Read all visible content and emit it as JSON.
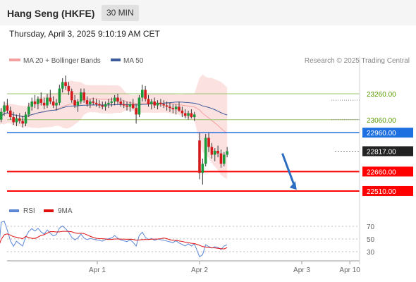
{
  "header": {
    "title": "Hang Seng (HKFE)",
    "timeframe": "30 MIN"
  },
  "datetime": "Thursday, April 3, 2025 9:10:19 AM CET",
  "legend": {
    "ma20": "MA 20 + Bollinger Bands",
    "ma50": "MA 50",
    "rsi": "RSI",
    "ma9": "9MA"
  },
  "credit": "Research © 2025 Trading Central",
  "colors": {
    "up": "#1a9a3a",
    "down": "#d41a1a",
    "band": "#f9c9c9",
    "ma20": "#f4a0a0",
    "ma50": "#3d5a99",
    "support": "#ff0000",
    "pivot": "#1e6fe0",
    "resistance": "#9bc36f",
    "rsi": "#5b86d8",
    "arrow": "#2b6dc0"
  },
  "chart_data": [
    {
      "type": "candlestick",
      "price_min": 22450,
      "price_max": 23450,
      "x_ticks": [
        {
          "label": "Apr 1",
          "x": 0.5
        },
        {
          "label": "Apr 2",
          "x": 1.5
        },
        {
          "label": "Apr 3",
          "x": 2.5
        },
        {
          "label": "Apr 10",
          "x": 2.97
        }
      ],
      "levels": [
        {
          "value": 23260,
          "label": "23260.00",
          "kind": "resistance"
        },
        {
          "value": 23060,
          "label": "23060.00",
          "kind": "resistance"
        },
        {
          "value": 22960,
          "label": "22960.00",
          "kind": "pivot"
        },
        {
          "value": 22817,
          "label": "22817.00",
          "kind": "last"
        },
        {
          "value": 22660,
          "label": "22660.00",
          "kind": "support"
        },
        {
          "value": 22510,
          "label": "22510.00",
          "kind": "support"
        }
      ],
      "arrow": {
        "from": [
          2.31,
          22800
        ],
        "to": [
          2.45,
          22520
        ]
      },
      "candles": [
        [
          -0.5,
          23050,
          23130,
          23020,
          23080
        ],
        [
          -0.47,
          23080,
          23110,
          23040,
          23060
        ],
        [
          -0.44,
          23060,
          23150,
          23040,
          23120
        ],
        [
          -0.41,
          23120,
          23200,
          23090,
          23170
        ],
        [
          -0.38,
          23170,
          23220,
          23110,
          23130
        ],
        [
          -0.35,
          23130,
          23160,
          23060,
          23080
        ],
        [
          -0.32,
          23080,
          23120,
          23020,
          23040
        ],
        [
          -0.29,
          23040,
          23100,
          23010,
          23070
        ],
        [
          -0.26,
          23070,
          23110,
          23030,
          23050
        ],
        [
          -0.23,
          23050,
          23090,
          23000,
          23030
        ],
        [
          -0.2,
          23030,
          23120,
          23010,
          23100
        ],
        [
          -0.17,
          23100,
          23190,
          23080,
          23160
        ],
        [
          -0.14,
          23160,
          23230,
          23130,
          23200
        ],
        [
          -0.11,
          23200,
          23250,
          23150,
          23180
        ],
        [
          -0.08,
          23180,
          23240,
          23140,
          23220
        ],
        [
          -0.05,
          23220,
          23270,
          23170,
          23190
        ],
        [
          -0.02,
          23190,
          23230,
          23140,
          23170
        ],
        [
          0.01,
          23170,
          23260,
          23150,
          23230
        ],
        [
          0.04,
          23230,
          23290,
          23180,
          23200
        ],
        [
          0.07,
          23200,
          23240,
          23150,
          23170
        ],
        [
          0.1,
          23170,
          23220,
          23130,
          23190
        ],
        [
          0.13,
          23190,
          23330,
          23170,
          23300
        ],
        [
          0.16,
          23300,
          23380,
          23270,
          23350
        ],
        [
          0.19,
          23350,
          23400,
          23290,
          23320
        ],
        [
          0.22,
          23320,
          23350,
          23250,
          23280
        ],
        [
          0.25,
          23280,
          23300,
          23190,
          23210
        ],
        [
          0.28,
          23210,
          23250,
          23150,
          23170
        ],
        [
          0.31,
          23170,
          23220,
          23120,
          23200
        ],
        [
          0.34,
          23200,
          23300,
          23180,
          23270
        ],
        [
          0.37,
          23270,
          23300,
          23190,
          23210
        ],
        [
          0.4,
          23210,
          23240,
          23160,
          23180
        ],
        [
          0.43,
          23180,
          23220,
          23150,
          23200
        ],
        [
          0.46,
          23200,
          23230,
          23170,
          23190
        ],
        [
          0.49,
          23190,
          23220,
          23160,
          23180
        ],
        [
          0.52,
          23180,
          23210,
          23150,
          23170
        ],
        [
          0.55,
          23170,
          23200,
          23140,
          23160
        ],
        [
          0.58,
          23160,
          23200,
          23130,
          23180
        ],
        [
          0.61,
          23180,
          23220,
          23150,
          23190
        ],
        [
          0.64,
          23190,
          23230,
          23160,
          23200
        ],
        [
          0.67,
          23200,
          23250,
          23170,
          23230
        ],
        [
          0.7,
          23230,
          23260,
          23180,
          23200
        ],
        [
          0.73,
          23200,
          23230,
          23160,
          23180
        ],
        [
          0.76,
          23180,
          23210,
          23150,
          23170
        ],
        [
          0.79,
          23170,
          23200,
          23130,
          23160
        ],
        [
          0.82,
          23160,
          23200,
          23120,
          23180
        ],
        [
          0.85,
          23180,
          23220,
          23140,
          23150
        ],
        [
          0.88,
          23150,
          23180,
          23030,
          23100
        ],
        [
          0.91,
          23100,
          23250,
          23080,
          23230
        ],
        [
          0.94,
          23230,
          23330,
          23200,
          23290
        ],
        [
          0.97,
          23290,
          23320,
          23200,
          23220
        ],
        [
          1.0,
          23220,
          23250,
          23160,
          23180
        ],
        [
          1.03,
          23180,
          23220,
          23140,
          23200
        ],
        [
          1.06,
          23200,
          23230,
          23150,
          23170
        ],
        [
          1.09,
          23170,
          23210,
          23140,
          23190
        ],
        [
          1.12,
          23190,
          23220,
          23160,
          23180
        ],
        [
          1.15,
          23180,
          23210,
          23150,
          23170
        ],
        [
          1.18,
          23170,
          23200,
          23130,
          23160
        ],
        [
          1.21,
          23160,
          23190,
          23120,
          23150
        ],
        [
          1.24,
          23150,
          23180,
          23110,
          23140
        ],
        [
          1.27,
          23140,
          23180,
          23100,
          23160
        ],
        [
          1.3,
          23160,
          23200,
          23120,
          23130
        ],
        [
          1.33,
          23130,
          23160,
          23080,
          23110
        ],
        [
          1.36,
          23110,
          23140,
          23070,
          23090
        ],
        [
          1.39,
          23090,
          23130,
          23060,
          23110
        ],
        [
          1.42,
          23110,
          23140,
          23070,
          23080
        ],
        [
          1.45,
          23080,
          23120,
          23050,
          23100
        ],
        [
          1.5,
          22900,
          22960,
          22600,
          22650
        ],
        [
          1.53,
          22650,
          22760,
          22560,
          22720
        ],
        [
          1.56,
          22720,
          22950,
          22700,
          22920
        ],
        [
          1.59,
          22920,
          22960,
          22810,
          22850
        ],
        [
          1.62,
          22850,
          22880,
          22760,
          22790
        ],
        [
          1.65,
          22790,
          22840,
          22740,
          22820
        ],
        [
          1.68,
          22820,
          22860,
          22770,
          22800
        ],
        [
          1.71,
          22800,
          22830,
          22690,
          22720
        ],
        [
          1.74,
          22720,
          22810,
          22700,
          22790
        ],
        [
          1.77,
          22790,
          22850,
          22770,
          22817
        ]
      ]
    },
    {
      "type": "line",
      "name": "RSI",
      "y_ticks": [
        70,
        50,
        30
      ],
      "y_range": [
        20,
        80
      ]
    }
  ]
}
